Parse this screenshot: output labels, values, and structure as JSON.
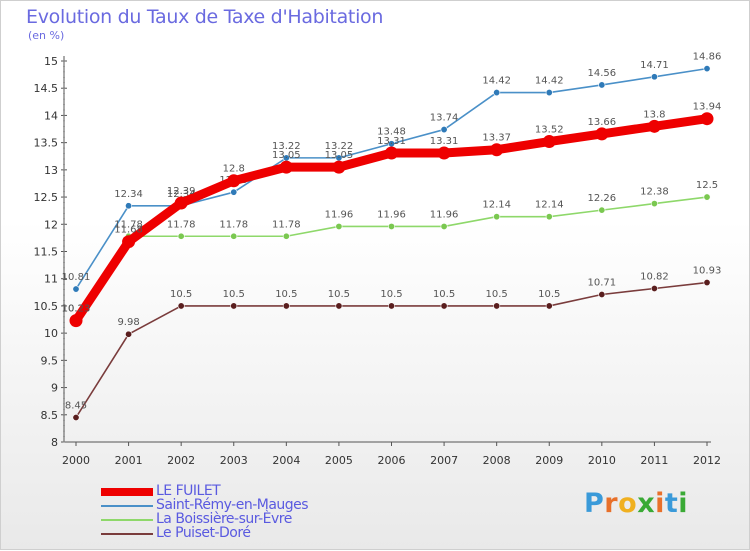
{
  "title": "Evolution du Taux de Taxe d'Habitation",
  "unit_label": "(en %)",
  "chart_data": {
    "type": "line",
    "title": "Evolution du Taux de Taxe d'Habitation",
    "ylabel": "(en %)",
    "xlabel": "",
    "x": [
      "2000",
      "2001",
      "2002",
      "2003",
      "2004",
      "2005",
      "2006",
      "2007",
      "2008",
      "2009",
      "2010",
      "2011",
      "2012"
    ],
    "ylim": [
      8,
      15
    ],
    "yticks": [
      "8",
      "8.5",
      "9",
      "9.5",
      "10",
      "10.5",
      "11",
      "11.5",
      "12",
      "12.5",
      "13",
      "13.5",
      "14",
      "14.5",
      "15"
    ],
    "grid": false,
    "legend_position": "bottom-left",
    "series": [
      {
        "name": "Saint-Rémy-en-Mauges",
        "color": "#4a90c8",
        "marker": "#2f7ab8",
        "values": [
          10.81,
          12.34,
          12.34,
          12.59,
          13.22,
          13.22,
          13.48,
          13.74,
          14.42,
          14.42,
          14.56,
          14.71,
          14.86
        ],
        "labels": [
          "10.81",
          "12.34",
          "12.34",
          "12.59",
          "13.22",
          "13.22",
          "13.48",
          "13.74",
          "14.42",
          "14.42",
          "14.56",
          "14.71",
          "14.86"
        ]
      },
      {
        "name": "La Boissière-sur-Èvre",
        "color": "#8ed86a",
        "marker": "#7ac850",
        "values": [
          10.23,
          11.78,
          11.78,
          11.78,
          11.78,
          11.96,
          11.96,
          11.96,
          12.14,
          12.14,
          12.26,
          12.38,
          12.5
        ],
        "labels": [
          "10.23",
          "11.78",
          "11.78",
          "11.78",
          "11.78",
          "11.96",
          "11.96",
          "11.96",
          "12.14",
          "12.14",
          "12.26",
          "12.38",
          "12.5"
        ]
      },
      {
        "name": "Le Puiset-Doré",
        "color": "#7a3c3c",
        "marker": "#5a1e1e",
        "values": [
          8.45,
          9.98,
          10.5,
          10.5,
          10.5,
          10.5,
          10.5,
          10.5,
          10.5,
          10.5,
          10.71,
          10.82,
          10.93
        ],
        "labels": [
          "8.45",
          "9.98",
          "10.5",
          "10.5",
          "10.5",
          "10.5",
          "10.5",
          "10.5",
          "10.5",
          "10.5",
          "10.71",
          "10.82",
          "10.93"
        ]
      },
      {
        "name": "LE FUILET",
        "color": "#ee0000",
        "marker": "#ee0000",
        "values": [
          10.23,
          11.68,
          12.39,
          12.8,
          13.05,
          13.05,
          13.31,
          13.31,
          13.37,
          13.52,
          13.66,
          13.8,
          13.94
        ],
        "labels": [
          "10.23",
          "11.68",
          "12.39",
          "12.8",
          "13.05",
          "13.05",
          "13.31",
          "13.31",
          "13.37",
          "13.52",
          "13.66",
          "13.8",
          "13.94"
        ]
      }
    ]
  },
  "legend": [
    {
      "name": "LE FUILET",
      "color": "#ee0000"
    },
    {
      "name": "Saint-Rémy-en-Mauges",
      "color": "#4a90c8"
    },
    {
      "name": "La Boissière-sur-Èvre",
      "color": "#8ed86a"
    },
    {
      "name": "Le Puiset-Doré",
      "color": "#7a3c3c"
    }
  ],
  "logo": {
    "letters": [
      "P",
      "r",
      "o",
      "x",
      "i",
      "t",
      "i"
    ],
    "colors": [
      "#3a9ad9",
      "#e8702a",
      "#f0b020",
      "#3aaa35",
      "#e8702a",
      "#3a9ad9",
      "#3aaa35"
    ]
  }
}
